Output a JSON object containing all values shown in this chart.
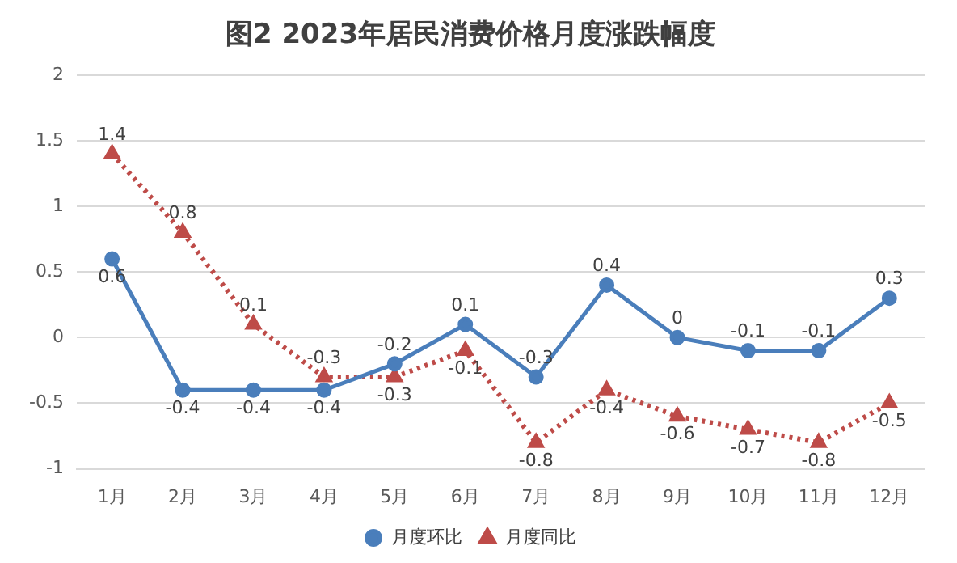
{
  "chart_data": {
    "type": "line",
    "title": "图2 2023年居民消费价格月度涨跌幅度",
    "categories": [
      "1月",
      "2月",
      "3月",
      "4月",
      "5月",
      "6月",
      "7月",
      "8月",
      "9月",
      "10月",
      "11月",
      "12月"
    ],
    "series": [
      {
        "name": "月度环比",
        "color": "#4a7ebb",
        "marker": "circle",
        "line_style": "solid",
        "values": [
          0.6,
          -0.4,
          -0.4,
          -0.4,
          -0.2,
          0.1,
          -0.3,
          0.4,
          0,
          -0.1,
          -0.1,
          0.3
        ]
      },
      {
        "name": "月度同比",
        "color": "#be4b48",
        "marker": "triangle",
        "line_style": "dotted",
        "values": [
          1.4,
          0.8,
          0.1,
          -0.3,
          -0.3,
          -0.1,
          -0.8,
          -0.4,
          -0.6,
          -0.7,
          -0.8,
          -0.5
        ]
      }
    ],
    "ylim": [
      -1,
      2
    ],
    "yticks": [
      -1,
      -0.5,
      0,
      0.5,
      1,
      1.5,
      2
    ],
    "grid": "y",
    "legend": "bottom",
    "data_labels": true
  }
}
